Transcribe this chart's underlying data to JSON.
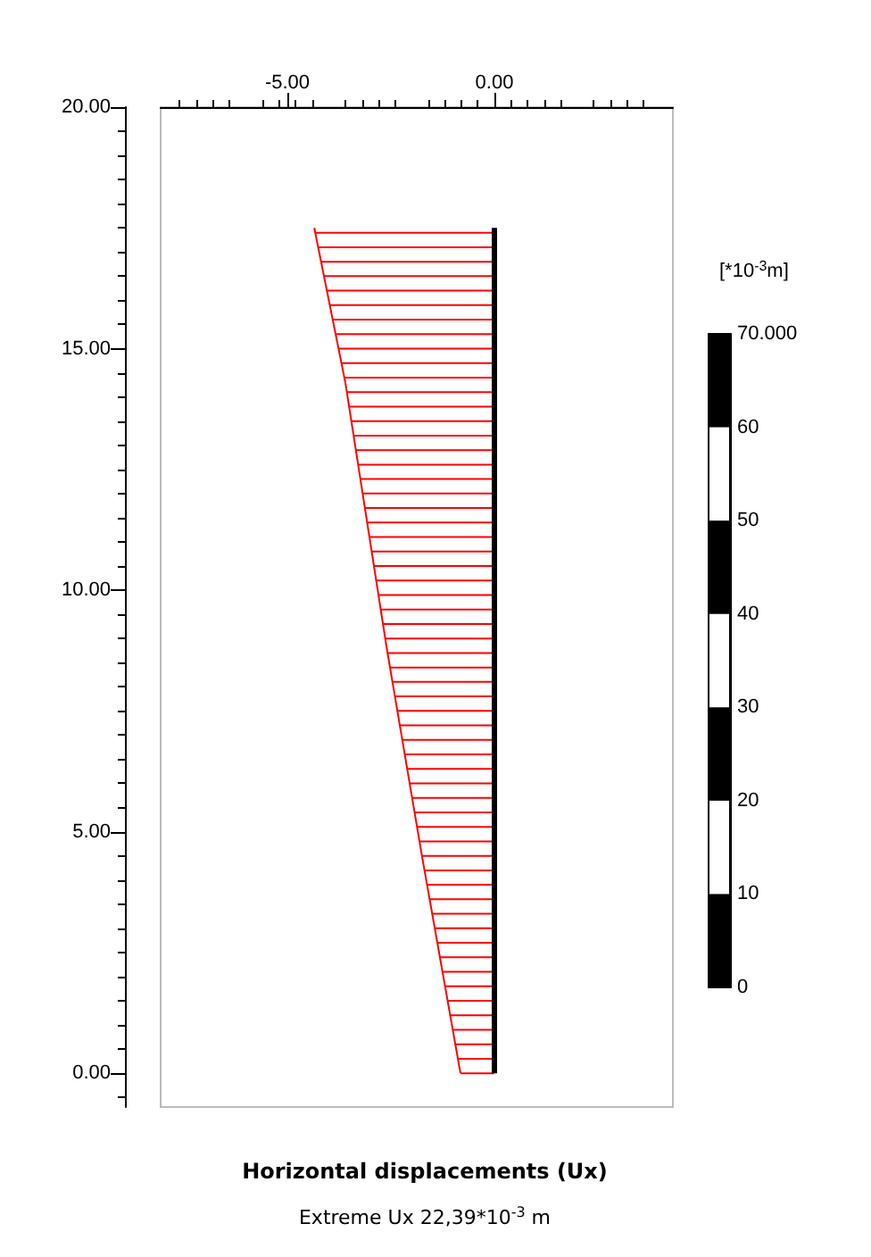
{
  "chart_data": {
    "type": "line",
    "title": "Horizontal displacements (Ux)",
    "subtitle": "Extreme Ux 22,39*10$^{-3}$ m",
    "y2label": "[*10$^{-3}$m]",
    "xlim": [
      -8.06,
      4.31
    ],
    "xticks": [
      {
        "value": -5,
        "label": "-5.00"
      },
      {
        "value": 0,
        "label": "0.00"
      }
    ],
    "ylim": [
      -0.7,
      20
    ],
    "yticks": [
      {
        "value": 0,
        "label": "0.00"
      },
      {
        "value": 5,
        "label": "5.00"
      },
      {
        "value": 10,
        "label": "10.00"
      },
      {
        "value": 15,
        "label": "15.00"
      },
      {
        "value": 20,
        "label": "20.00"
      }
    ],
    "y2lim": [
      0,
      70
    ],
    "y2ticks": [
      0,
      10,
      20,
      30,
      40,
      50,
      60,
      {
        "value": 70,
        "label": "70.000"
      }
    ],
    "series": [
      {
        "color": "#ff0000",
        "x": [
          -4.35,
          -3.6,
          -2.6,
          -1.75,
          -0.82
        ],
        "values": [
          17.5,
          14.3,
          8.8,
          4.5,
          0
        ]
      },
      {
        "color": "#000000",
        "x": [
          0,
          0,
          0
        ],
        "values": [
          0,
          8.75,
          17.5
        ]
      }
    ]
  }
}
